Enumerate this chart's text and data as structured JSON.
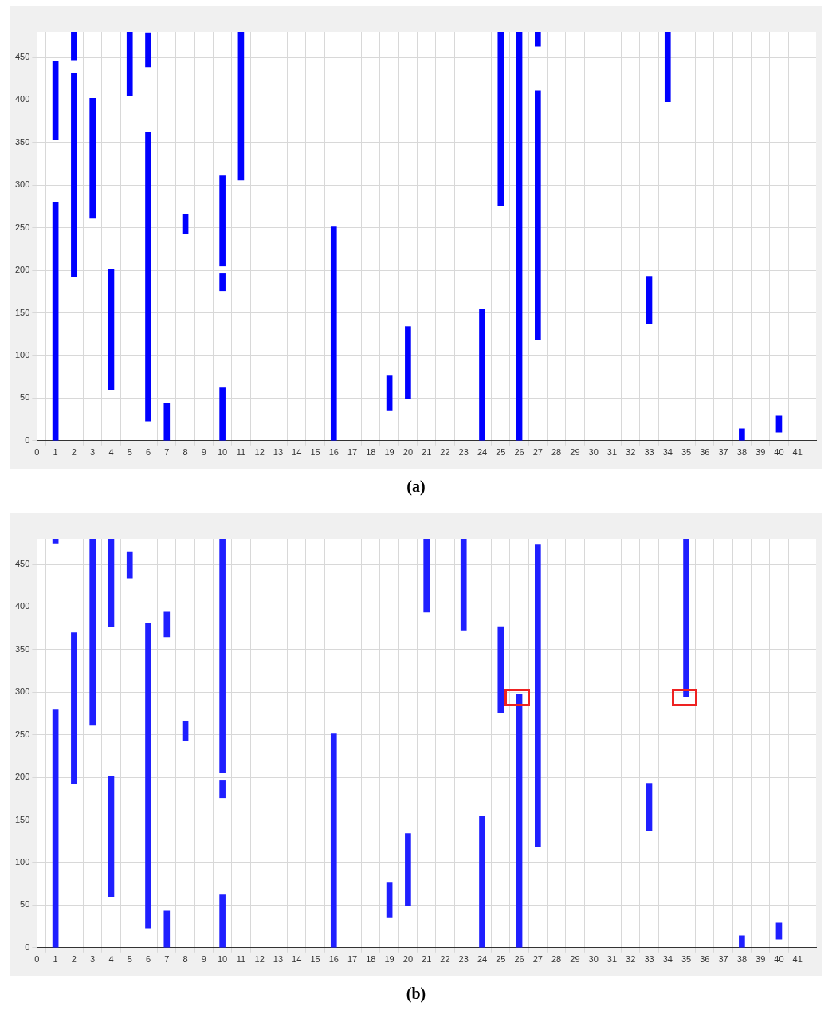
{
  "chart_data": [
    {
      "type": "bar",
      "annotations": [
        "(a)"
      ],
      "xlim": [
        0,
        42
      ],
      "ylim": [
        0,
        480
      ],
      "xticks": [
        0,
        1,
        2,
        3,
        4,
        5,
        6,
        7,
        8,
        9,
        10,
        11,
        12,
        13,
        14,
        15,
        16,
        17,
        18,
        19,
        20,
        21,
        22,
        23,
        24,
        25,
        26,
        27,
        28,
        29,
        30,
        31,
        32,
        33,
        34,
        35,
        36,
        37,
        38,
        39,
        40,
        41
      ],
      "yticks": [
        0,
        50,
        100,
        150,
        200,
        250,
        300,
        350,
        400,
        450
      ],
      "grid": true,
      "series": [
        {
          "color": "#0000ff",
          "x": [
            1,
            2,
            3,
            4,
            5,
            6,
            7,
            8,
            10,
            11,
            16,
            19,
            20,
            24,
            25,
            26,
            27,
            33,
            34,
            38,
            40
          ],
          "base": [
            0,
            192,
            261,
            60,
            405,
            23,
            0,
            243,
            0,
            306,
            0,
            36,
            49,
            0,
            276,
            0,
            118,
            137,
            398,
            0,
            10
          ],
          "values": [
            280,
            240,
            141,
            141,
            75,
            339,
            44,
            23,
            62,
            174,
            251,
            40,
            85,
            155,
            204,
            480,
            293,
            56,
            82,
            14,
            19
          ]
        },
        {
          "color": "#0000ff",
          "x": [
            1,
            2,
            6,
            10,
            27
          ],
          "base": [
            353,
            447,
            439,
            176,
            463
          ],
          "values": [
            92,
            33,
            40,
            20,
            17
          ]
        },
        {
          "color": "#0000ff",
          "x": [
            10
          ],
          "base": [
            205
          ],
          "values": [
            106
          ]
        }
      ]
    },
    {
      "type": "bar",
      "annotations": [
        "(b)"
      ],
      "xlim": [
        0,
        42
      ],
      "ylim": [
        0,
        480
      ],
      "xticks": [
        0,
        1,
        2,
        3,
        4,
        5,
        6,
        7,
        8,
        9,
        10,
        11,
        12,
        13,
        14,
        15,
        16,
        17,
        18,
        19,
        20,
        21,
        22,
        23,
        24,
        25,
        26,
        27,
        28,
        29,
        30,
        31,
        32,
        33,
        34,
        35,
        36,
        37,
        38,
        39,
        40,
        41
      ],
      "yticks": [
        0,
        50,
        100,
        150,
        200,
        250,
        300,
        350,
        400,
        450
      ],
      "grid": true,
      "series": [
        {
          "color": "#1f1fff",
          "x": [
            1,
            2,
            3,
            4,
            5,
            6,
            7,
            8,
            10,
            16,
            19,
            20,
            21,
            23,
            24,
            25,
            26,
            27,
            33,
            35,
            38,
            40
          ],
          "base": [
            0,
            192,
            261,
            60,
            434,
            23,
            0,
            243,
            0,
            0,
            36,
            49,
            394,
            373,
            0,
            276,
            0,
            118,
            137,
            295,
            0,
            10
          ],
          "values": [
            280,
            178,
            219,
            141,
            31,
            358,
            43,
            23,
            62,
            251,
            40,
            85,
            86,
            107,
            155,
            101,
            298,
            355,
            56,
            185,
            14,
            19
          ]
        },
        {
          "color": "#1f1fff",
          "x": [
            1,
            4,
            7,
            10
          ],
          "base": [
            475,
            377,
            365,
            176
          ],
          "values": [
            5,
            103,
            29,
            20
          ]
        },
        {
          "color": "#1f1fff",
          "x": [
            10
          ],
          "base": [
            205
          ],
          "values": [
            275
          ]
        }
      ]
    }
  ]
}
